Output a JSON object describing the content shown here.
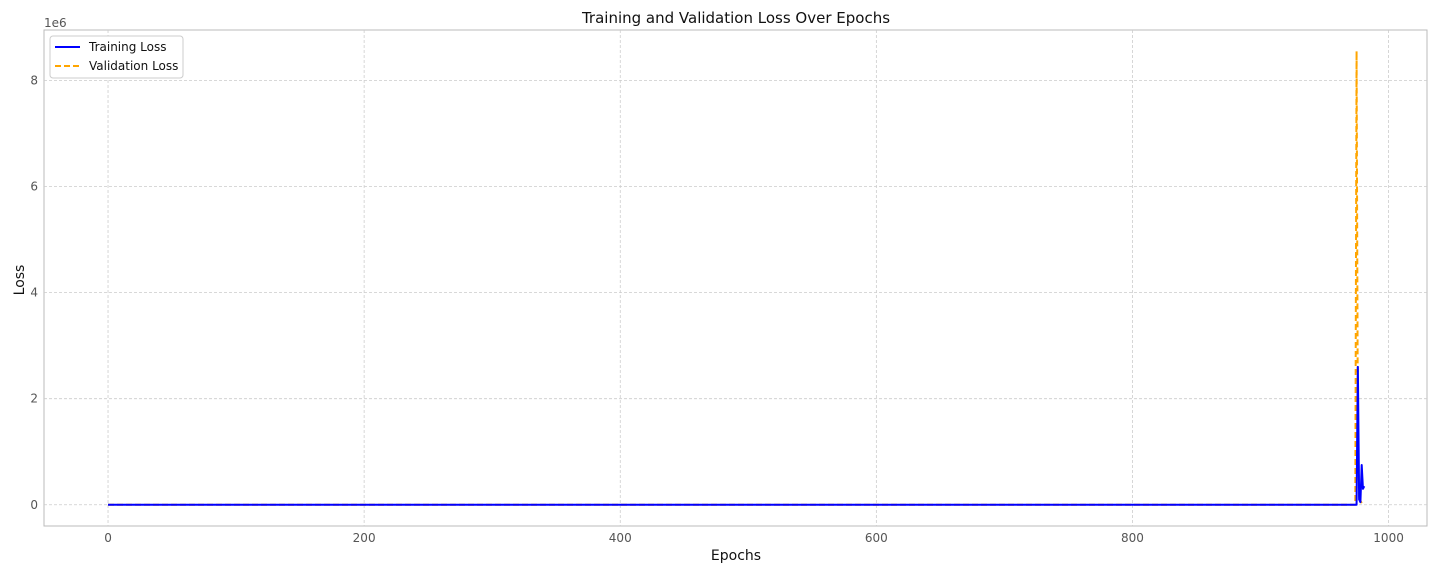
{
  "chart_data": {
    "type": "line",
    "title": "Training and Validation Loss Over Epochs",
    "xlabel": "Epochs",
    "ylabel": "Loss",
    "y_offset_label": "1e6",
    "y_multiplier": 1000000,
    "xlim": [
      -50,
      1030
    ],
    "ylim": [
      -400000,
      8950000
    ],
    "xticks": [
      0,
      200,
      400,
      600,
      800,
      1000
    ],
    "yticks": [
      0,
      2000000,
      4000000,
      6000000,
      8000000
    ],
    "ytick_labels": [
      "0",
      "2",
      "4",
      "6",
      "8"
    ],
    "grid": true,
    "legend_position": "upper left",
    "series": [
      {
        "name": "Training Loss",
        "color": "#0000ff",
        "style": "solid",
        "x": [
          0,
          975,
          976,
          977,
          978,
          979,
          980,
          981
        ],
        "y": [
          0,
          0,
          2600000,
          100000,
          50000,
          750000,
          300000,
          350000
        ]
      },
      {
        "name": "Validation Loss",
        "color": "#ffa500",
        "style": "dashed",
        "x": [
          0,
          974,
          975,
          976,
          977,
          978,
          979
        ],
        "y": [
          0,
          0,
          8550000,
          1500000,
          150000,
          80000,
          30000
        ]
      }
    ]
  }
}
